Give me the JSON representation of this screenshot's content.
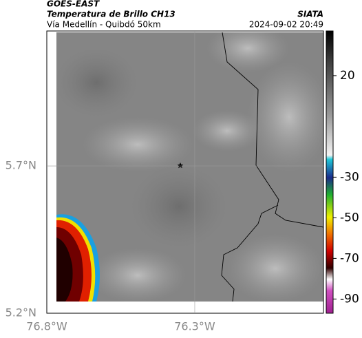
{
  "header": {
    "product": "GOES-EAST",
    "title": "Temperatura de Brillo CH13",
    "subtitle": "Vía Medellín - Quibdó 50km",
    "source": "SIATA",
    "timestamp": "2024-09-02 20:49"
  },
  "map": {
    "xlim": [
      -76.8,
      -75.865
    ],
    "ylim": [
      5.2,
      6.158
    ],
    "xticks": [
      {
        "value": -76.8,
        "label": "76.8°W"
      },
      {
        "value": -76.3,
        "label": "76.3°W"
      }
    ],
    "yticks": [
      {
        "value": 5.2,
        "label": "5.2°N"
      },
      {
        "value": 5.7,
        "label": "5.7°N"
      }
    ],
    "grid": true
  },
  "colorbar": {
    "lim": [
      42,
      -97
    ],
    "ticks": [
      20,
      -30,
      -50,
      -70,
      -90
    ]
  }
}
